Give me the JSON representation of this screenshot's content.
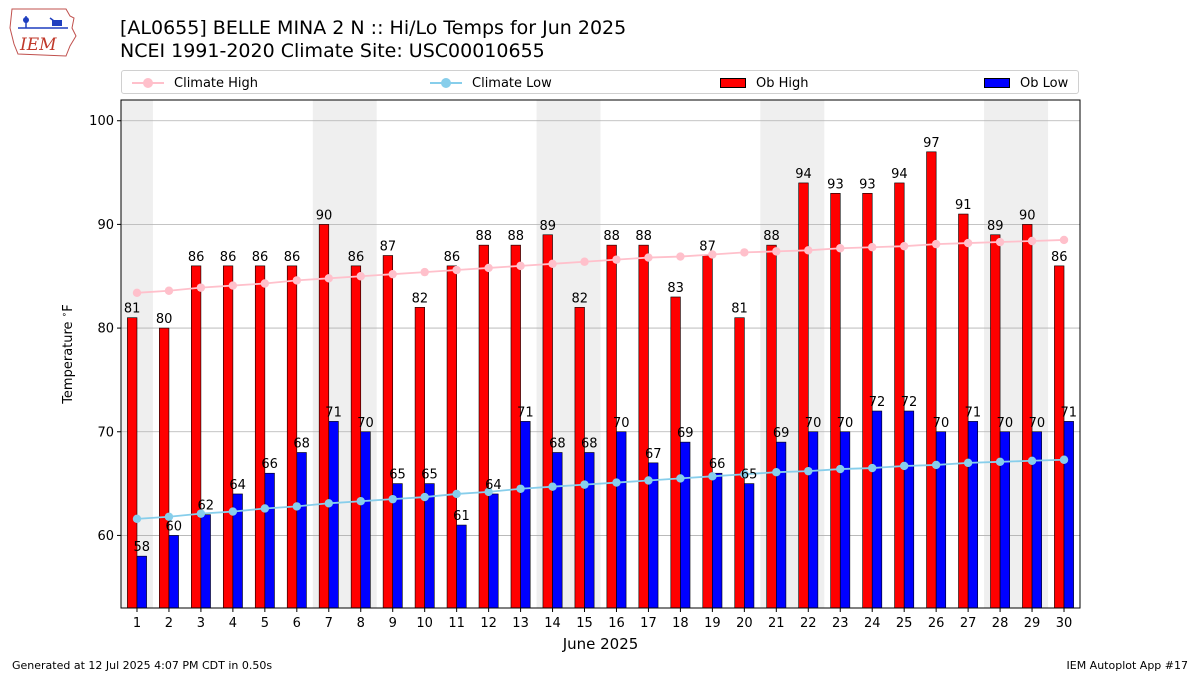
{
  "title_line1": "[AL0655] BELLE MINA 2 N :: Hi/Lo Temps for Jun 2025",
  "title_line2": "NCEI 1991-2020 Climate Site: USC00010655",
  "logo_text": "IEM",
  "footer_left": "Generated at 12 Jul 2025 4:07 PM CDT in 0.50s",
  "footer_right": "IEM Autoplot App #17",
  "colors": {
    "ob_high": "#ff0000",
    "ob_low": "#0000ff",
    "climate_high": "#ffc0cb",
    "climate_low": "#87ceeb",
    "weekend_shade": "#efefef",
    "grid": "#b0b0b0"
  },
  "chart_data": {
    "type": "bar",
    "title": "[AL0655] BELLE MINA 2 N :: Hi/Lo Temps for Jun 2025",
    "subtitle": "NCEI 1991-2020 Climate Site: USC00010655",
    "xlabel": "June 2025",
    "ylabel": "Temperature $^\\circ$F",
    "ylim": [
      53,
      102
    ],
    "yticks": [
      60,
      70,
      80,
      90,
      100
    ],
    "grid": "horizontal",
    "legend_position": "top",
    "legend": [
      "Climate High",
      "Climate Low",
      "Ob High",
      "Ob Low"
    ],
    "categories": [
      "1",
      "2",
      "3",
      "4",
      "5",
      "6",
      "7",
      "8",
      "9",
      "10",
      "11",
      "12",
      "13",
      "14",
      "15",
      "16",
      "17",
      "18",
      "19",
      "20",
      "21",
      "22",
      "23",
      "24",
      "25",
      "26",
      "27",
      "28",
      "29",
      "30"
    ],
    "shaded_days": [
      [
        1,
        1
      ],
      [
        7,
        8
      ],
      [
        14,
        15
      ],
      [
        21,
        22
      ],
      [
        28,
        29
      ]
    ],
    "series": [
      {
        "name": "Ob High",
        "kind": "bar",
        "values": [
          81,
          80,
          86,
          86,
          86,
          86,
          90,
          86,
          87,
          82,
          86,
          88,
          88,
          89,
          82,
          88,
          88,
          83,
          87,
          81,
          88,
          94,
          93,
          93,
          94,
          97,
          91,
          89,
          90,
          86
        ]
      },
      {
        "name": "Ob Low",
        "kind": "bar",
        "values": [
          58,
          60,
          62,
          64,
          66,
          68,
          71,
          70,
          65,
          65,
          61,
          64,
          71,
          68,
          68,
          70,
          67,
          69,
          66,
          65,
          69,
          70,
          70,
          72,
          72,
          70,
          71,
          70,
          70,
          71
        ]
      },
      {
        "name": "Climate High",
        "kind": "line",
        "values": [
          83.4,
          83.6,
          83.9,
          84.1,
          84.3,
          84.6,
          84.8,
          85.0,
          85.2,
          85.4,
          85.6,
          85.8,
          86.0,
          86.2,
          86.4,
          86.6,
          86.8,
          86.9,
          87.1,
          87.3,
          87.4,
          87.5,
          87.7,
          87.8,
          87.9,
          88.1,
          88.2,
          88.3,
          88.4,
          88.5
        ]
      },
      {
        "name": "Climate Low",
        "kind": "line",
        "values": [
          61.6,
          61.8,
          62.1,
          62.3,
          62.6,
          62.8,
          63.1,
          63.3,
          63.5,
          63.7,
          64.0,
          64.2,
          64.5,
          64.7,
          64.9,
          65.1,
          65.3,
          65.5,
          65.7,
          65.9,
          66.1,
          66.2,
          66.4,
          66.5,
          66.7,
          66.8,
          67.0,
          67.1,
          67.2,
          67.3
        ]
      }
    ]
  }
}
